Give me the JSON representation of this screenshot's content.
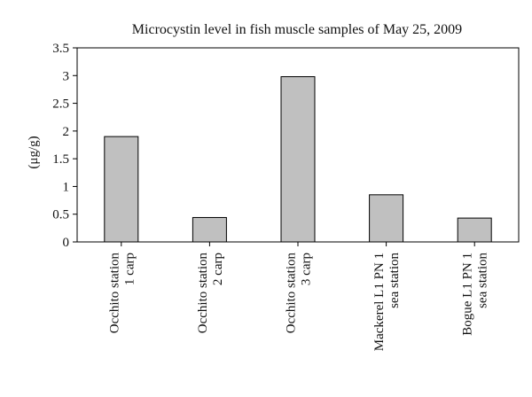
{
  "chart_data": {
    "type": "bar",
    "title": "Microcystin level in fish muscle samples of May 25, 2009",
    "ylabel": "(μg/g)",
    "xlabel": "",
    "categories": [
      [
        "Occhito station",
        "1 carp"
      ],
      [
        "Occhito station",
        "2 carp"
      ],
      [
        "Occhito station",
        "3 carp"
      ],
      [
        "Mackerel L1 PN 1",
        "sea station"
      ],
      [
        "Bogue L1 PN 1",
        "sea station"
      ]
    ],
    "values": [
      1.9,
      0.44,
      2.98,
      0.85,
      0.43
    ],
    "ylim": [
      0,
      3.5
    ],
    "yticks": [
      0,
      0.5,
      1,
      1.5,
      2,
      2.5,
      3,
      3.5
    ],
    "ytick_labels": [
      "0",
      "0.5",
      "1",
      "1.5",
      "2",
      "2.5",
      "3",
      "3.5"
    ],
    "grid": false,
    "legend": "none",
    "colors": {
      "bar_fill": "#c0c0c0",
      "bar_stroke": "#000000",
      "axis": "#000000"
    }
  }
}
